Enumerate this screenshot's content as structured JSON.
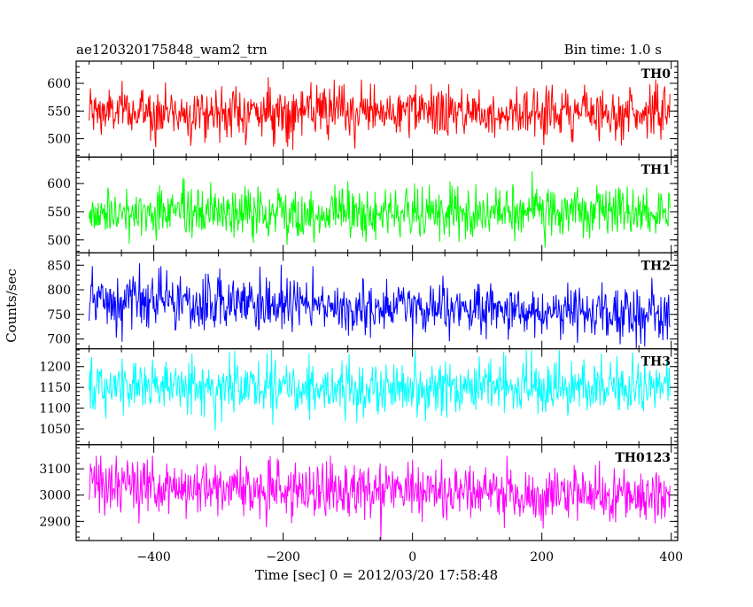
{
  "chart_data": {
    "type": "line",
    "title_left": "ae120320175848_wam2_trn",
    "title_right": "Bin time: 1.0 s",
    "xlabel": "Time [sec] 0 = 2012/03/20 17:58:48",
    "ylabel": "Counts/sec",
    "xlim": [
      -520,
      410
    ],
    "x_range": [
      -500,
      398
    ],
    "x_step": 1,
    "x_ticks": [
      -400,
      -200,
      0,
      200,
      400
    ],
    "x_tick_labels": [
      "−400",
      "−200",
      "0",
      "200",
      "400"
    ],
    "grid": false,
    "panels": [
      {
        "label": "TH0",
        "color": "#ff0000",
        "ylim": [
          467,
          640
        ],
        "y_ticks": [
          500,
          550,
          600
        ],
        "y_tick_labels": [
          "500",
          "550",
          "600"
        ],
        "mean": 548,
        "sigma": 23,
        "min": 480,
        "max": 638
      },
      {
        "label": "TH1",
        "color": "#00ff00",
        "ylim": [
          477,
          647
        ],
        "y_ticks": [
          500,
          550,
          600
        ],
        "y_tick_labels": [
          "500",
          "550",
          "600"
        ],
        "mean": 548,
        "sigma": 23,
        "min": 480,
        "max": 640
      },
      {
        "label": "TH2",
        "color": "#0000ff",
        "ylim": [
          680,
          875
        ],
        "y_ticks": [
          700,
          750,
          800,
          850
        ],
        "y_tick_labels": [
          "700",
          "750",
          "800",
          "850"
        ],
        "mean_start": 775,
        "mean_end": 750,
        "sigma": 28,
        "min": 680,
        "max": 872
      },
      {
        "label": "TH3",
        "color": "#00ffff",
        "ylim": [
          1012,
          1243
        ],
        "y_ticks": [
          1050,
          1100,
          1150,
          1200
        ],
        "y_tick_labels": [
          "1050",
          "1100",
          "1150",
          "1200"
        ],
        "mean": 1150,
        "sigma": 33,
        "min": 1012,
        "max": 1240
      },
      {
        "label": "TH0123",
        "color": "#ff00ff",
        "ylim": [
          2827,
          3192
        ],
        "y_ticks": [
          2900,
          3000,
          3100
        ],
        "y_tick_labels": [
          "2900",
          "3000",
          "3100"
        ],
        "mean_start": 3040,
        "mean_end": 2990,
        "sigma": 55,
        "min": 2830,
        "max": 3150
      }
    ]
  }
}
